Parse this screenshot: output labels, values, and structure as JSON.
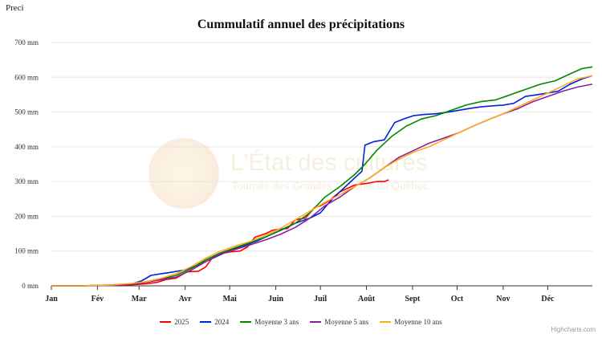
{
  "corner_label": "Preci",
  "credits": "Highcharts.com",
  "watermark": {
    "title": "L'État des cultures",
    "subtitle": "Tournée des Grandes Cultures du Québec"
  },
  "chart_data": {
    "type": "line",
    "title": "Cummulatif annuel des précipitations",
    "xlabel": "",
    "ylabel": "",
    "x_unit": "day of year",
    "x_categories": [
      "Jan",
      "Fév",
      "Mar",
      "Avr",
      "Mai",
      "Juin",
      "Juil",
      "Août",
      "Sept",
      "Oct",
      "Nov",
      "Déc"
    ],
    "y_ticks": [
      "0 mm",
      "100 mm",
      "200 mm",
      "300 mm",
      "400 mm",
      "500 mm",
      "600 mm",
      "700 mm"
    ],
    "ylim": [
      0,
      700
    ],
    "grid": true,
    "legend_position": "bottom",
    "series": [
      {
        "name": "2025",
        "color": "#ff0000",
        "x": [
          1,
          20,
          40,
          55,
          65,
          72,
          78,
          85,
          92,
          100,
          105,
          110,
          118,
          122,
          128,
          133,
          138,
          145,
          150,
          155,
          160,
          165,
          172,
          178,
          182,
          188,
          195,
          200,
          205,
          210,
          215,
          220,
          225,
          228
        ],
        "y": [
          0,
          0,
          1,
          3,
          6,
          10,
          18,
          22,
          40,
          42,
          55,
          85,
          95,
          98,
          100,
          112,
          140,
          150,
          160,
          163,
          165,
          190,
          195,
          225,
          230,
          245,
          270,
          280,
          290,
          293,
          296,
          300,
          300,
          305
        ]
      },
      {
        "name": "2024",
        "color": "#0022dd",
        "x": [
          1,
          20,
          40,
          55,
          62,
          68,
          75,
          80,
          90,
          100,
          110,
          120,
          130,
          140,
          150,
          158,
          165,
          175,
          182,
          190,
          195,
          200,
          205,
          210,
          212,
          218,
          225,
          232,
          238,
          245,
          252,
          260,
          268,
          275,
          282,
          290,
          298,
          305,
          312,
          320,
          328,
          335,
          342,
          350,
          358,
          365
        ],
        "y": [
          0,
          0,
          2,
          5,
          15,
          30,
          35,
          38,
          45,
          60,
          80,
          100,
          115,
          130,
          150,
          165,
          180,
          195,
          210,
          250,
          270,
          290,
          310,
          330,
          405,
          415,
          420,
          470,
          480,
          490,
          493,
          495,
          500,
          505,
          510,
          515,
          518,
          520,
          525,
          545,
          550,
          555,
          560,
          580,
          595,
          605
        ]
      },
      {
        "name": "Moyenne 3 ans",
        "color": "#008800",
        "x": [
          1,
          20,
          40,
          55,
          65,
          75,
          85,
          95,
          105,
          115,
          125,
          135,
          145,
          155,
          165,
          175,
          185,
          195,
          205,
          212,
          220,
          230,
          240,
          250,
          260,
          270,
          280,
          290,
          300,
          310,
          320,
          330,
          340,
          350,
          358,
          365
        ],
        "y": [
          0,
          0,
          2,
          6,
          12,
          20,
          30,
          50,
          75,
          95,
          110,
          125,
          140,
          160,
          180,
          210,
          255,
          285,
          320,
          350,
          390,
          430,
          460,
          480,
          490,
          505,
          520,
          530,
          535,
          550,
          565,
          580,
          590,
          610,
          625,
          630
        ]
      },
      {
        "name": "Moyenne 5 ans",
        "color": "#882299",
        "x": [
          1,
          20,
          40,
          55,
          65,
          75,
          85,
          95,
          105,
          115,
          125,
          135,
          145,
          155,
          165,
          175,
          185,
          195,
          205,
          215,
          225,
          235,
          245,
          255,
          265,
          275,
          285,
          295,
          305,
          315,
          325,
          335,
          345,
          355,
          365
        ],
        "y": [
          0,
          0,
          1,
          5,
          10,
          18,
          25,
          45,
          70,
          92,
          105,
          118,
          132,
          148,
          168,
          195,
          230,
          255,
          285,
          310,
          340,
          370,
          390,
          410,
          425,
          440,
          460,
          478,
          495,
          510,
          530,
          545,
          560,
          572,
          580
        ]
      },
      {
        "name": "Moyenne 10 ans",
        "color": "#ffaa22",
        "x": [
          1,
          20,
          40,
          55,
          65,
          75,
          85,
          95,
          105,
          115,
          125,
          135,
          145,
          155,
          165,
          175,
          185,
          195,
          205,
          215,
          225,
          235,
          245,
          255,
          265,
          275,
          285,
          295,
          305,
          315,
          325,
          335,
          345,
          355,
          365
        ],
        "y": [
          0,
          0,
          2,
          7,
          12,
          22,
          35,
          55,
          80,
          100,
          115,
          128,
          145,
          165,
          190,
          215,
          240,
          262,
          285,
          310,
          340,
          365,
          385,
          400,
          420,
          440,
          460,
          478,
          495,
          515,
          535,
          555,
          575,
          595,
          605
        ]
      }
    ]
  }
}
